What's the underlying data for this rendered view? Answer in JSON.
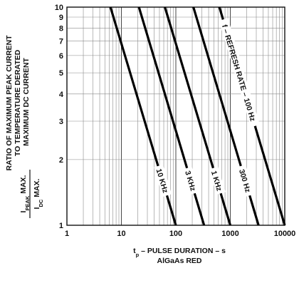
{
  "chart_data": {
    "type": "line",
    "x_scale": "log",
    "y_scale": "log",
    "xlim": [
      1,
      10000
    ],
    "ylim": [
      1,
      10
    ],
    "x_ticks": [
      "1",
      "10",
      "100",
      "1000",
      "10000"
    ],
    "y_ticks": [
      "1",
      "2",
      "3",
      "4",
      "5",
      "6",
      "7",
      "8",
      "9",
      "10"
    ],
    "grid": true,
    "xlabel": [
      "t",
      "p",
      " – PULSE DURATION – s"
    ],
    "xlabel_line2": "AlGaAs RED",
    "ylabel_lines": [
      "RATIO OF MAXIMUM PEAK CURRENT",
      "TO TEMPERATURE DERATED",
      "MAXIMUM DC CURRENT"
    ],
    "ylabel_formula": {
      "numerator": [
        "I",
        "PEAK",
        " MAX."
      ],
      "denominator": [
        "I",
        "DC",
        " MAX."
      ]
    },
    "series": [
      {
        "name": "10 KHz",
        "x": [
          6.3,
          100
        ],
        "y": [
          10,
          1
        ]
      },
      {
        "name": "3 KHz",
        "x": [
          21,
          330
        ],
        "y": [
          10,
          1
        ]
      },
      {
        "name": "1 KHz",
        "x": [
          63,
          1000
        ],
        "y": [
          10,
          1
        ]
      },
      {
        "name": "300 Hz",
        "x": [
          210,
          3300
        ],
        "y": [
          10,
          1
        ]
      },
      {
        "name": "100 Hz",
        "x": [
          630,
          10000
        ],
        "y": [
          10,
          1
        ]
      }
    ],
    "annotation": "f – REFRESH RATE – 100 Hz"
  }
}
